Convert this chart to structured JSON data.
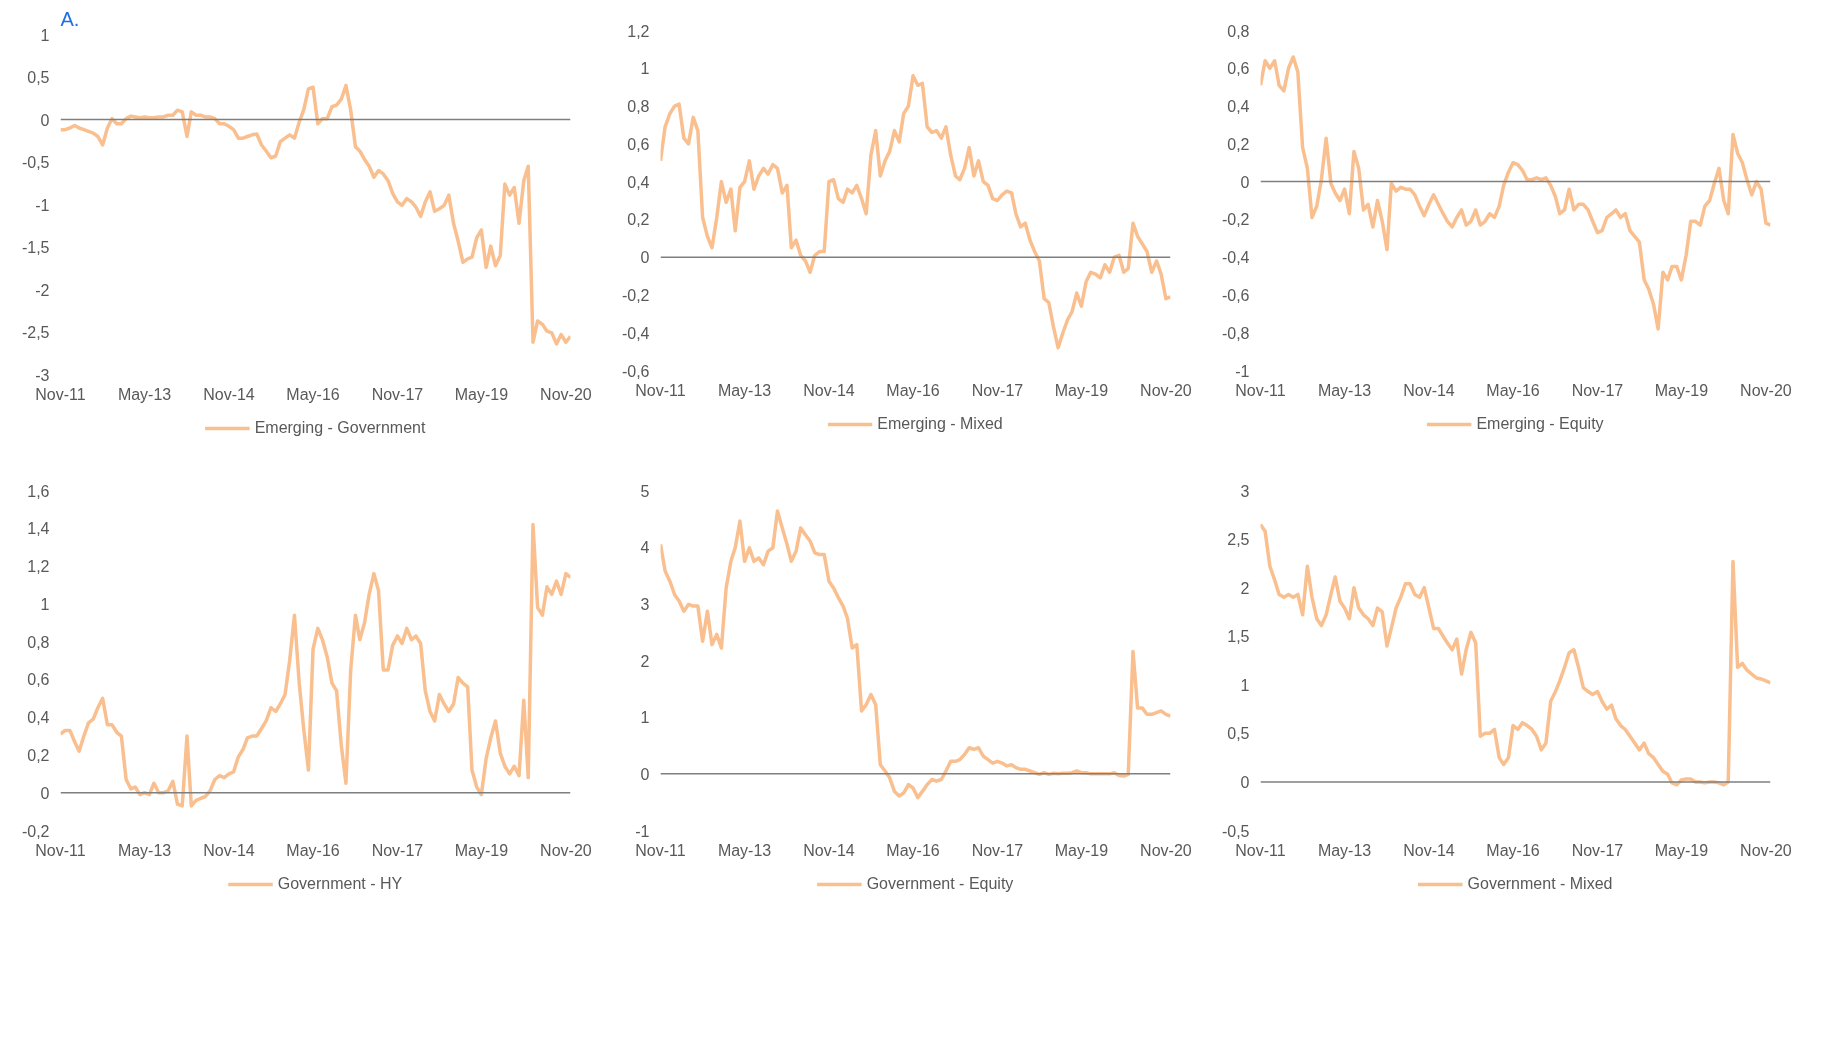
{
  "chart_data": [
    {
      "type": "line",
      "title": "A.",
      "legend": "bottom",
      "grid": false,
      "x": [
        "2011-11",
        "2011-12",
        "2012-01",
        "2012-02",
        "2012-03",
        "2012-04",
        "2012-05",
        "2012-06",
        "2012-07",
        "2012-08",
        "2012-09",
        "2012-10",
        "2012-11",
        "2012-12",
        "2013-01",
        "2013-02",
        "2013-03",
        "2013-04",
        "2013-05",
        "2013-06",
        "2013-07",
        "2013-08",
        "2013-09",
        "2013-10",
        "2013-11",
        "2013-12",
        "2014-01",
        "2014-02",
        "2014-03",
        "2014-04",
        "2014-05",
        "2014-06",
        "2014-07",
        "2014-08",
        "2014-09",
        "2014-10",
        "2014-11",
        "2014-12",
        "2015-01",
        "2015-02",
        "2015-03",
        "2015-04",
        "2015-05",
        "2015-06",
        "2015-07",
        "2015-08",
        "2015-09",
        "2015-10",
        "2015-11",
        "2015-12",
        "2016-01",
        "2016-02",
        "2016-03",
        "2016-04",
        "2016-05",
        "2016-06",
        "2016-07",
        "2016-08",
        "2016-09",
        "2016-10",
        "2016-11",
        "2016-12",
        "2017-01",
        "2017-02",
        "2017-03",
        "2017-04",
        "2017-05",
        "2017-06",
        "2017-07",
        "2017-08",
        "2017-09",
        "2017-10",
        "2017-11",
        "2017-12",
        "2018-01",
        "2018-02",
        "2018-03",
        "2018-04",
        "2018-05",
        "2018-06",
        "2018-07",
        "2018-08",
        "2018-09",
        "2018-10",
        "2018-11",
        "2018-12",
        "2019-01",
        "2019-02",
        "2019-03",
        "2019-04",
        "2019-05",
        "2019-06",
        "2019-07",
        "2019-08",
        "2019-09",
        "2019-10",
        "2019-11",
        "2019-12",
        "2020-01",
        "2020-02",
        "2020-03",
        "2020-04",
        "2020-05",
        "2020-06",
        "2020-07",
        "2020-08",
        "2020-09",
        "2020-10",
        "2020-11",
        "2020-12"
      ],
      "xlim": [
        "2011-11",
        "2020-12"
      ],
      "xticks": [
        {
          "value": "2011-11",
          "label": "Nov-11"
        },
        {
          "value": "2013-05",
          "label": "May-13"
        },
        {
          "value": "2014-11",
          "label": "Nov-14"
        },
        {
          "value": "2016-05",
          "label": "May-16"
        },
        {
          "value": "2017-11",
          "label": "Nov-17"
        },
        {
          "value": "2019-05",
          "label": "May-19"
        },
        {
          "value": "2020-11",
          "label": "Nov-20"
        }
      ],
      "ylim": [
        -3,
        1
      ],
      "yticks": [
        -3,
        {
          "value": -2.5,
          "label": "-2,5"
        },
        -2,
        {
          "value": -1.5,
          "label": "-1,5"
        },
        -1,
        {
          "value": -0.5,
          "label": "-0,5"
        },
        0,
        {
          "value": 0.5,
          "label": "0,5"
        },
        1
      ],
      "ref_lines": [
        {
          "axis": "y",
          "value": 0,
          "color": "#7f7f7f"
        }
      ],
      "series": [
        {
          "name": "Emerging - Government",
          "color": "#f9bf8f",
          "values": [
            -0.12,
            -0.12,
            -0.1,
            -0.07,
            -0.1,
            -0.12,
            -0.14,
            -0.16,
            -0.2,
            -0.3,
            -0.1,
            0.01,
            -0.05,
            -0.05,
            0.01,
            0.04,
            0.03,
            0.02,
            0.03,
            0.02,
            0.02,
            0.03,
            0.03,
            0.05,
            0.05,
            0.11,
            0.09,
            -0.2,
            0.09,
            0.05,
            0.05,
            0.03,
            0.03,
            0.01,
            -0.05,
            -0.05,
            -0.08,
            -0.12,
            -0.22,
            -0.22,
            -0.2,
            -0.18,
            -0.17,
            -0.3,
            -0.37,
            -0.45,
            -0.43,
            -0.26,
            -0.22,
            -0.18,
            -0.22,
            -0.03,
            0.11,
            0.36,
            0.38,
            -0.05,
            0.01,
            0.01,
            0.15,
            0.17,
            0.24,
            0.4,
            0.11,
            -0.32,
            -0.37,
            -0.47,
            -0.55,
            -0.68,
            -0.6,
            -0.64,
            -0.72,
            -0.87,
            -0.97,
            -1.01,
            -0.93,
            -0.97,
            -1.03,
            -1.14,
            -0.97,
            -0.85,
            -1.08,
            -1.05,
            -1.01,
            -0.89,
            -1.22,
            -1.43,
            -1.68,
            -1.64,
            -1.62,
            -1.39,
            -1.3,
            -1.74,
            -1.49,
            -1.72,
            -1.6,
            -0.76,
            -0.89,
            -0.8,
            -1.22,
            -0.72,
            -0.55,
            -2.62,
            -2.37,
            -2.41,
            -2.49,
            -2.51,
            -2.64,
            -2.53,
            -2.62,
            -2.55
          ]
        }
      ]
    },
    {
      "type": "line",
      "legend": "bottom",
      "grid": false,
      "x": [
        "2011-11",
        "2011-12",
        "2012-01",
        "2012-02",
        "2012-03",
        "2012-04",
        "2012-05",
        "2012-06",
        "2012-07",
        "2012-08",
        "2012-09",
        "2012-10",
        "2012-11",
        "2012-12",
        "2013-01",
        "2013-02",
        "2013-03",
        "2013-04",
        "2013-05",
        "2013-06",
        "2013-07",
        "2013-08",
        "2013-09",
        "2013-10",
        "2013-11",
        "2013-12",
        "2014-01",
        "2014-02",
        "2014-03",
        "2014-04",
        "2014-05",
        "2014-06",
        "2014-07",
        "2014-08",
        "2014-09",
        "2014-10",
        "2014-11",
        "2014-12",
        "2015-01",
        "2015-02",
        "2015-03",
        "2015-04",
        "2015-05",
        "2015-06",
        "2015-07",
        "2015-08",
        "2015-09",
        "2015-10",
        "2015-11",
        "2015-12",
        "2016-01",
        "2016-02",
        "2016-03",
        "2016-04",
        "2016-05",
        "2016-06",
        "2016-07",
        "2016-08",
        "2016-09",
        "2016-10",
        "2016-11",
        "2016-12",
        "2017-01",
        "2017-02",
        "2017-03",
        "2017-04",
        "2017-05",
        "2017-06",
        "2017-07",
        "2017-08",
        "2017-09",
        "2017-10",
        "2017-11",
        "2017-12",
        "2018-01",
        "2018-02",
        "2018-03",
        "2018-04",
        "2018-05",
        "2018-06",
        "2018-07",
        "2018-08",
        "2018-09",
        "2018-10",
        "2018-11",
        "2018-12",
        "2019-01",
        "2019-02",
        "2019-03",
        "2019-04",
        "2019-05",
        "2019-06",
        "2019-07",
        "2019-08",
        "2019-09",
        "2019-10",
        "2019-11",
        "2019-12",
        "2020-01",
        "2020-02",
        "2020-03",
        "2020-04",
        "2020-05",
        "2020-06",
        "2020-07",
        "2020-08",
        "2020-09",
        "2020-10",
        "2020-11",
        "2020-12"
      ],
      "xlim": [
        "2011-11",
        "2020-12"
      ],
      "xticks": [
        {
          "value": "2011-11",
          "label": "Nov-11"
        },
        {
          "value": "2013-05",
          "label": "May-13"
        },
        {
          "value": "2014-11",
          "label": "Nov-14"
        },
        {
          "value": "2016-05",
          "label": "May-16"
        },
        {
          "value": "2017-11",
          "label": "Nov-17"
        },
        {
          "value": "2019-05",
          "label": "May-19"
        },
        {
          "value": "2020-11",
          "label": "Nov-20"
        }
      ],
      "ylim": [
        -0.6,
        1.2
      ],
      "yticks": [
        {
          "value": -0.6,
          "label": "-0,6"
        },
        {
          "value": -0.4,
          "label": "-0,4"
        },
        {
          "value": -0.2,
          "label": "-0,2"
        },
        0,
        {
          "value": 0.2,
          "label": "0,2"
        },
        {
          "value": 0.4,
          "label": "0,4"
        },
        {
          "value": 0.6,
          "label": "0,6"
        },
        {
          "value": 0.8,
          "label": "0,8"
        },
        1,
        {
          "value": 1.2,
          "label": "1,2"
        }
      ],
      "ref_lines": [
        {
          "axis": "y",
          "value": 0,
          "color": "#7f7f7f"
        }
      ],
      "series": [
        {
          "name": "Emerging - Mixed",
          "color": "#f9bf8f",
          "values": [
            0.51,
            0.69,
            0.76,
            0.8,
            0.81,
            0.63,
            0.6,
            0.74,
            0.67,
            0.21,
            0.11,
            0.05,
            0.21,
            0.4,
            0.29,
            0.36,
            0.14,
            0.37,
            0.4,
            0.51,
            0.36,
            0.43,
            0.47,
            0.44,
            0.49,
            0.47,
            0.34,
            0.38,
            0.05,
            0.09,
            0.01,
            -0.02,
            -0.08,
            0.01,
            0.03,
            0.03,
            0.4,
            0.41,
            0.31,
            0.29,
            0.36,
            0.34,
            0.38,
            0.31,
            0.23,
            0.54,
            0.67,
            0.43,
            0.51,
            0.56,
            0.67,
            0.61,
            0.76,
            0.8,
            0.96,
            0.91,
            0.92,
            0.69,
            0.66,
            0.67,
            0.63,
            0.69,
            0.54,
            0.43,
            0.41,
            0.47,
            0.58,
            0.43,
            0.51,
            0.4,
            0.38,
            0.31,
            0.3,
            0.33,
            0.35,
            0.34,
            0.23,
            0.16,
            0.18,
            0.09,
            0.03,
            -0.02,
            -0.22,
            -0.24,
            -0.37,
            -0.48,
            -0.4,
            -0.33,
            -0.29,
            -0.19,
            -0.26,
            -0.13,
            -0.08,
            -0.09,
            -0.11,
            -0.04,
            -0.08,
            0.0,
            0.01,
            -0.08,
            -0.06,
            0.18,
            0.11,
            0.07,
            0.03,
            -0.08,
            -0.02,
            -0.09,
            -0.22,
            -0.21
          ]
        }
      ]
    },
    {
      "type": "line",
      "legend": "bottom",
      "grid": false,
      "x": [
        "2011-11",
        "2011-12",
        "2012-01",
        "2012-02",
        "2012-03",
        "2012-04",
        "2012-05",
        "2012-06",
        "2012-07",
        "2012-08",
        "2012-09",
        "2012-10",
        "2012-11",
        "2012-12",
        "2013-01",
        "2013-02",
        "2013-03",
        "2013-04",
        "2013-05",
        "2013-06",
        "2013-07",
        "2013-08",
        "2013-09",
        "2013-10",
        "2013-11",
        "2013-12",
        "2014-01",
        "2014-02",
        "2014-03",
        "2014-04",
        "2014-05",
        "2014-06",
        "2014-07",
        "2014-08",
        "2014-09",
        "2014-10",
        "2014-11",
        "2014-12",
        "2015-01",
        "2015-02",
        "2015-03",
        "2015-04",
        "2015-05",
        "2015-06",
        "2015-07",
        "2015-08",
        "2015-09",
        "2015-10",
        "2015-11",
        "2015-12",
        "2016-01",
        "2016-02",
        "2016-03",
        "2016-04",
        "2016-05",
        "2016-06",
        "2016-07",
        "2016-08",
        "2016-09",
        "2016-10",
        "2016-11",
        "2016-12",
        "2017-01",
        "2017-02",
        "2017-03",
        "2017-04",
        "2017-05",
        "2017-06",
        "2017-07",
        "2017-08",
        "2017-09",
        "2017-10",
        "2017-11",
        "2017-12",
        "2018-01",
        "2018-02",
        "2018-03",
        "2018-04",
        "2018-05",
        "2018-06",
        "2018-07",
        "2018-08",
        "2018-09",
        "2018-10",
        "2018-11",
        "2018-12",
        "2019-01",
        "2019-02",
        "2019-03",
        "2019-04",
        "2019-05",
        "2019-06",
        "2019-07",
        "2019-08",
        "2019-09",
        "2019-10",
        "2019-11",
        "2019-12",
        "2020-01",
        "2020-02",
        "2020-03",
        "2020-04",
        "2020-05",
        "2020-06",
        "2020-07",
        "2020-08",
        "2020-09",
        "2020-10",
        "2020-11",
        "2020-12"
      ],
      "xlim": [
        "2011-11",
        "2020-12"
      ],
      "xticks": [
        {
          "value": "2011-11",
          "label": "Nov-11"
        },
        {
          "value": "2013-05",
          "label": "May-13"
        },
        {
          "value": "2014-11",
          "label": "Nov-14"
        },
        {
          "value": "2016-05",
          "label": "May-16"
        },
        {
          "value": "2017-11",
          "label": "Nov-17"
        },
        {
          "value": "2019-05",
          "label": "May-19"
        },
        {
          "value": "2020-11",
          "label": "Nov-20"
        }
      ],
      "ylim": [
        -1,
        0.8
      ],
      "yticks": [
        -1,
        {
          "value": -0.8,
          "label": "-0,8"
        },
        {
          "value": -0.6,
          "label": "-0,6"
        },
        {
          "value": -0.4,
          "label": "-0,4"
        },
        {
          "value": -0.2,
          "label": "-0,2"
        },
        0,
        {
          "value": 0.2,
          "label": "0,2"
        },
        {
          "value": 0.4,
          "label": "0,4"
        },
        {
          "value": 0.6,
          "label": "0,6"
        },
        {
          "value": 0.8,
          "label": "0,8"
        }
      ],
      "ref_lines": [
        {
          "axis": "y",
          "value": 0,
          "color": "#7f7f7f"
        }
      ],
      "series": [
        {
          "name": "Emerging - Equity",
          "color": "#f9bf8f",
          "values": [
            0.51,
            0.64,
            0.6,
            0.64,
            0.51,
            0.48,
            0.6,
            0.66,
            0.58,
            0.18,
            0.07,
            -0.19,
            -0.13,
            0.01,
            0.23,
            -0.01,
            -0.06,
            -0.1,
            -0.04,
            -0.17,
            0.16,
            0.07,
            -0.15,
            -0.12,
            -0.24,
            -0.1,
            -0.21,
            -0.36,
            -0.01,
            -0.05,
            -0.03,
            -0.04,
            -0.04,
            -0.07,
            -0.13,
            -0.18,
            -0.12,
            -0.07,
            -0.12,
            -0.17,
            -0.21,
            -0.24,
            -0.19,
            -0.15,
            -0.23,
            -0.21,
            -0.15,
            -0.23,
            -0.21,
            -0.17,
            -0.19,
            -0.13,
            -0.02,
            0.05,
            0.1,
            0.09,
            0.06,
            0.01,
            0.01,
            0.02,
            0.01,
            0.02,
            -0.02,
            -0.08,
            -0.17,
            -0.15,
            -0.04,
            -0.15,
            -0.12,
            -0.12,
            -0.15,
            -0.21,
            -0.27,
            -0.26,
            -0.19,
            -0.17,
            -0.15,
            -0.19,
            -0.17,
            -0.26,
            -0.29,
            -0.32,
            -0.52,
            -0.57,
            -0.65,
            -0.78,
            -0.48,
            -0.52,
            -0.45,
            -0.45,
            -0.52,
            -0.39,
            -0.21,
            -0.21,
            -0.23,
            -0.13,
            -0.1,
            -0.01,
            0.07,
            -0.1,
            -0.17,
            0.25,
            0.15,
            0.1,
            0.01,
            -0.07,
            0.0,
            -0.04,
            -0.22,
            -0.23
          ]
        }
      ]
    },
    {
      "type": "line",
      "legend": "bottom",
      "grid": false,
      "x": [
        "2011-11",
        "2011-12",
        "2012-01",
        "2012-02",
        "2012-03",
        "2012-04",
        "2012-05",
        "2012-06",
        "2012-07",
        "2012-08",
        "2012-09",
        "2012-10",
        "2012-11",
        "2012-12",
        "2013-01",
        "2013-02",
        "2013-03",
        "2013-04",
        "2013-05",
        "2013-06",
        "2013-07",
        "2013-08",
        "2013-09",
        "2013-10",
        "2013-11",
        "2013-12",
        "2014-01",
        "2014-02",
        "2014-03",
        "2014-04",
        "2014-05",
        "2014-06",
        "2014-07",
        "2014-08",
        "2014-09",
        "2014-10",
        "2014-11",
        "2014-12",
        "2015-01",
        "2015-02",
        "2015-03",
        "2015-04",
        "2015-05",
        "2015-06",
        "2015-07",
        "2015-08",
        "2015-09",
        "2015-10",
        "2015-11",
        "2015-12",
        "2016-01",
        "2016-02",
        "2016-03",
        "2016-04",
        "2016-05",
        "2016-06",
        "2016-07",
        "2016-08",
        "2016-09",
        "2016-10",
        "2016-11",
        "2016-12",
        "2017-01",
        "2017-02",
        "2017-03",
        "2017-04",
        "2017-05",
        "2017-06",
        "2017-07",
        "2017-08",
        "2017-09",
        "2017-10",
        "2017-11",
        "2017-12",
        "2018-01",
        "2018-02",
        "2018-03",
        "2018-04",
        "2018-05",
        "2018-06",
        "2018-07",
        "2018-08",
        "2018-09",
        "2018-10",
        "2018-11",
        "2018-12",
        "2019-01",
        "2019-02",
        "2019-03",
        "2019-04",
        "2019-05",
        "2019-06",
        "2019-07",
        "2019-08",
        "2019-09",
        "2019-10",
        "2019-11",
        "2019-12",
        "2020-01",
        "2020-02",
        "2020-03",
        "2020-04",
        "2020-05",
        "2020-06",
        "2020-07",
        "2020-08",
        "2020-09",
        "2020-10",
        "2020-11",
        "2020-12"
      ],
      "xlim": [
        "2011-11",
        "2020-12"
      ],
      "xticks": [
        {
          "value": "2011-11",
          "label": "Nov-11"
        },
        {
          "value": "2013-05",
          "label": "May-13"
        },
        {
          "value": "2014-11",
          "label": "Nov-14"
        },
        {
          "value": "2016-05",
          "label": "May-16"
        },
        {
          "value": "2017-11",
          "label": "Nov-17"
        },
        {
          "value": "2019-05",
          "label": "May-19"
        },
        {
          "value": "2020-11",
          "label": "Nov-20"
        }
      ],
      "ylim": [
        -0.2,
        1.6
      ],
      "yticks": [
        {
          "value": -0.2,
          "label": "-0,2"
        },
        0,
        {
          "value": 0.2,
          "label": "0,2"
        },
        {
          "value": 0.4,
          "label": "0,4"
        },
        {
          "value": 0.6,
          "label": "0,6"
        },
        {
          "value": 0.8,
          "label": "0,8"
        },
        1,
        {
          "value": 1.2,
          "label": "1,2"
        },
        {
          "value": 1.4,
          "label": "1,4"
        },
        {
          "value": 1.6,
          "label": "1,6"
        }
      ],
      "ref_lines": [
        {
          "axis": "y",
          "value": 0,
          "color": "#7f7f7f"
        }
      ],
      "series": [
        {
          "name": "Government - HY",
          "color": "#f9bf8f",
          "values": [
            0.31,
            0.33,
            0.33,
            0.27,
            0.22,
            0.3,
            0.37,
            0.39,
            0.45,
            0.5,
            0.36,
            0.36,
            0.32,
            0.3,
            0.07,
            0.02,
            0.03,
            -0.01,
            0.0,
            -0.01,
            0.05,
            0.0,
            0.0,
            0.01,
            0.06,
            -0.06,
            -0.07,
            0.3,
            -0.07,
            -0.04,
            -0.03,
            -0.02,
            0.01,
            0.07,
            0.09,
            0.08,
            0.1,
            0.11,
            0.19,
            0.23,
            0.29,
            0.3,
            0.3,
            0.34,
            0.38,
            0.45,
            0.43,
            0.47,
            0.52,
            0.7,
            0.94,
            0.58,
            0.34,
            0.12,
            0.76,
            0.87,
            0.81,
            0.72,
            0.58,
            0.54,
            0.25,
            0.05,
            0.65,
            0.94,
            0.81,
            0.9,
            1.05,
            1.16,
            1.07,
            0.65,
            0.65,
            0.78,
            0.83,
            0.79,
            0.87,
            0.81,
            0.83,
            0.79,
            0.54,
            0.43,
            0.38,
            0.52,
            0.47,
            0.43,
            0.47,
            0.61,
            0.58,
            0.56,
            0.12,
            0.03,
            -0.01,
            0.18,
            0.29,
            0.38,
            0.21,
            0.14,
            0.1,
            0.14,
            0.09,
            0.49,
            0.08,
            1.42,
            0.98,
            0.94,
            1.09,
            1.05,
            1.12,
            1.05,
            1.16,
            1.14
          ]
        }
      ]
    },
    {
      "type": "line",
      "legend": "bottom",
      "grid": false,
      "x": [
        "2011-11",
        "2011-12",
        "2012-01",
        "2012-02",
        "2012-03",
        "2012-04",
        "2012-05",
        "2012-06",
        "2012-07",
        "2012-08",
        "2012-09",
        "2012-10",
        "2012-11",
        "2012-12",
        "2013-01",
        "2013-02",
        "2013-03",
        "2013-04",
        "2013-05",
        "2013-06",
        "2013-07",
        "2013-08",
        "2013-09",
        "2013-10",
        "2013-11",
        "2013-12",
        "2014-01",
        "2014-02",
        "2014-03",
        "2014-04",
        "2014-05",
        "2014-06",
        "2014-07",
        "2014-08",
        "2014-09",
        "2014-10",
        "2014-11",
        "2014-12",
        "2015-01",
        "2015-02",
        "2015-03",
        "2015-04",
        "2015-05",
        "2015-06",
        "2015-07",
        "2015-08",
        "2015-09",
        "2015-10",
        "2015-11",
        "2015-12",
        "2016-01",
        "2016-02",
        "2016-03",
        "2016-04",
        "2016-05",
        "2016-06",
        "2016-07",
        "2016-08",
        "2016-09",
        "2016-10",
        "2016-11",
        "2016-12",
        "2017-01",
        "2017-02",
        "2017-03",
        "2017-04",
        "2017-05",
        "2017-06",
        "2017-07",
        "2017-08",
        "2017-09",
        "2017-10",
        "2017-11",
        "2017-12",
        "2018-01",
        "2018-02",
        "2018-03",
        "2018-04",
        "2018-05",
        "2018-06",
        "2018-07",
        "2018-08",
        "2018-09",
        "2018-10",
        "2018-11",
        "2018-12",
        "2019-01",
        "2019-02",
        "2019-03",
        "2019-04",
        "2019-05",
        "2019-06",
        "2019-07",
        "2019-08",
        "2019-09",
        "2019-10",
        "2019-11",
        "2019-12",
        "2020-01",
        "2020-02",
        "2020-03",
        "2020-04",
        "2020-05",
        "2020-06",
        "2020-07",
        "2020-08",
        "2020-09",
        "2020-10",
        "2020-11",
        "2020-12"
      ],
      "xlim": [
        "2011-11",
        "2020-12"
      ],
      "xticks": [
        {
          "value": "2011-11",
          "label": "Nov-11"
        },
        {
          "value": "2013-05",
          "label": "May-13"
        },
        {
          "value": "2014-11",
          "label": "Nov-14"
        },
        {
          "value": "2016-05",
          "label": "May-16"
        },
        {
          "value": "2017-11",
          "label": "Nov-17"
        },
        {
          "value": "2019-05",
          "label": "May-19"
        },
        {
          "value": "2020-11",
          "label": "Nov-20"
        }
      ],
      "ylim": [
        -1,
        5
      ],
      "yticks": [
        -1,
        0,
        1,
        2,
        3,
        4,
        5
      ],
      "ref_lines": [
        {
          "axis": "y",
          "value": 0,
          "color": "#7f7f7f"
        }
      ],
      "series": [
        {
          "name": "Government - Equity",
          "color": "#f9bf8f",
          "values": [
            4.05,
            3.58,
            3.4,
            3.16,
            3.05,
            2.87,
            2.99,
            2.96,
            2.96,
            2.34,
            2.87,
            2.28,
            2.46,
            2.22,
            3.28,
            3.75,
            3.99,
            4.46,
            3.75,
            3.99,
            3.75,
            3.81,
            3.69,
            3.93,
            3.99,
            4.64,
            4.34,
            4.05,
            3.75,
            3.93,
            4.34,
            4.22,
            4.11,
            3.9,
            3.87,
            3.87,
            3.4,
            3.28,
            3.11,
            2.96,
            2.75,
            2.22,
            2.28,
            1.11,
            1.22,
            1.4,
            1.22,
            0.16,
            0.05,
            -0.07,
            -0.31,
            -0.39,
            -0.34,
            -0.19,
            -0.25,
            -0.42,
            -0.31,
            -0.19,
            -0.1,
            -0.13,
            -0.1,
            0.05,
            0.22,
            0.22,
            0.25,
            0.34,
            0.46,
            0.43,
            0.46,
            0.31,
            0.25,
            0.19,
            0.22,
            0.19,
            0.14,
            0.16,
            0.11,
            0.08,
            0.08,
            0.05,
            0.02,
            -0.01,
            0.02,
            -0.01,
            0.01,
            0.0,
            0.01,
            0.01,
            0.02,
            0.05,
            0.02,
            0.02,
            0.0,
            0.0,
            0.0,
            0.0,
            0.0,
            0.02,
            -0.03,
            -0.04,
            -0.01,
            2.16,
            1.16,
            1.16,
            1.05,
            1.05,
            1.08,
            1.11,
            1.05,
            1.02
          ]
        }
      ]
    },
    {
      "type": "line",
      "legend": "bottom",
      "grid": false,
      "x": [
        "2011-11",
        "2011-12",
        "2012-01",
        "2012-02",
        "2012-03",
        "2012-04",
        "2012-05",
        "2012-06",
        "2012-07",
        "2012-08",
        "2012-09",
        "2012-10",
        "2012-11",
        "2012-12",
        "2013-01",
        "2013-02",
        "2013-03",
        "2013-04",
        "2013-05",
        "2013-06",
        "2013-07",
        "2013-08",
        "2013-09",
        "2013-10",
        "2013-11",
        "2013-12",
        "2014-01",
        "2014-02",
        "2014-03",
        "2014-04",
        "2014-05",
        "2014-06",
        "2014-07",
        "2014-08",
        "2014-09",
        "2014-10",
        "2014-11",
        "2014-12",
        "2015-01",
        "2015-02",
        "2015-03",
        "2015-04",
        "2015-05",
        "2015-06",
        "2015-07",
        "2015-08",
        "2015-09",
        "2015-10",
        "2015-11",
        "2015-12",
        "2016-01",
        "2016-02",
        "2016-03",
        "2016-04",
        "2016-05",
        "2016-06",
        "2016-07",
        "2016-08",
        "2016-09",
        "2016-10",
        "2016-11",
        "2016-12",
        "2017-01",
        "2017-02",
        "2017-03",
        "2017-04",
        "2017-05",
        "2017-06",
        "2017-07",
        "2017-08",
        "2017-09",
        "2017-10",
        "2017-11",
        "2017-12",
        "2018-01",
        "2018-02",
        "2018-03",
        "2018-04",
        "2018-05",
        "2018-06",
        "2018-07",
        "2018-08",
        "2018-09",
        "2018-10",
        "2018-11",
        "2018-12",
        "2019-01",
        "2019-02",
        "2019-03",
        "2019-04",
        "2019-05",
        "2019-06",
        "2019-07",
        "2019-08",
        "2019-09",
        "2019-10",
        "2019-11",
        "2019-12",
        "2020-01",
        "2020-02",
        "2020-03",
        "2020-04",
        "2020-05",
        "2020-06",
        "2020-07",
        "2020-08",
        "2020-09",
        "2020-10",
        "2020-11",
        "2020-12"
      ],
      "xlim": [
        "2011-11",
        "2020-12"
      ],
      "xticks": [
        {
          "value": "2011-11",
          "label": "Nov-11"
        },
        {
          "value": "2013-05",
          "label": "May-13"
        },
        {
          "value": "2014-11",
          "label": "Nov-14"
        },
        {
          "value": "2016-05",
          "label": "May-16"
        },
        {
          "value": "2017-11",
          "label": "Nov-17"
        },
        {
          "value": "2019-05",
          "label": "May-19"
        },
        {
          "value": "2020-11",
          "label": "Nov-20"
        }
      ],
      "ylim": [
        -0.5,
        3
      ],
      "yticks": [
        {
          "value": -0.5,
          "label": "-0,5"
        },
        0,
        {
          "value": 0.5,
          "label": "0,5"
        },
        1,
        {
          "value": 1.5,
          "label": "1,5"
        },
        2,
        {
          "value": 2.5,
          "label": "2,5"
        },
        3
      ],
      "ref_lines": [
        {
          "axis": "y",
          "value": 0,
          "color": "#7f7f7f"
        }
      ],
      "series": [
        {
          "name": "Government - Mixed",
          "color": "#f9bf8f",
          "values": [
            2.65,
            2.58,
            2.22,
            2.08,
            1.93,
            1.9,
            1.93,
            1.9,
            1.93,
            1.72,
            2.22,
            1.9,
            1.68,
            1.61,
            1.72,
            1.93,
            2.11,
            1.86,
            1.79,
            1.68,
            2.0,
            1.79,
            1.72,
            1.68,
            1.61,
            1.79,
            1.75,
            1.4,
            1.58,
            1.79,
            1.9,
            2.04,
            2.04,
            1.93,
            1.9,
            2.0,
            1.79,
            1.58,
            1.58,
            1.5,
            1.43,
            1.36,
            1.47,
            1.11,
            1.36,
            1.54,
            1.43,
            0.47,
            0.5,
            0.5,
            0.54,
            0.25,
            0.18,
            0.25,
            0.58,
            0.54,
            0.61,
            0.58,
            0.54,
            0.47,
            0.33,
            0.4,
            0.83,
            0.93,
            1.04,
            1.18,
            1.33,
            1.36,
            1.18,
            0.97,
            0.93,
            0.9,
            0.93,
            0.83,
            0.75,
            0.79,
            0.65,
            0.58,
            0.54,
            0.47,
            0.4,
            0.33,
            0.4,
            0.29,
            0.25,
            0.18,
            0.11,
            0.08,
            -0.01,
            -0.03,
            0.02,
            0.03,
            0.03,
            0.0,
            0.0,
            -0.01,
            0.0,
            0.0,
            -0.01,
            -0.03,
            0.0,
            2.27,
            1.18,
            1.22,
            1.15,
            1.11,
            1.07,
            1.06,
            1.04,
            1.02
          ]
        }
      ]
    }
  ]
}
